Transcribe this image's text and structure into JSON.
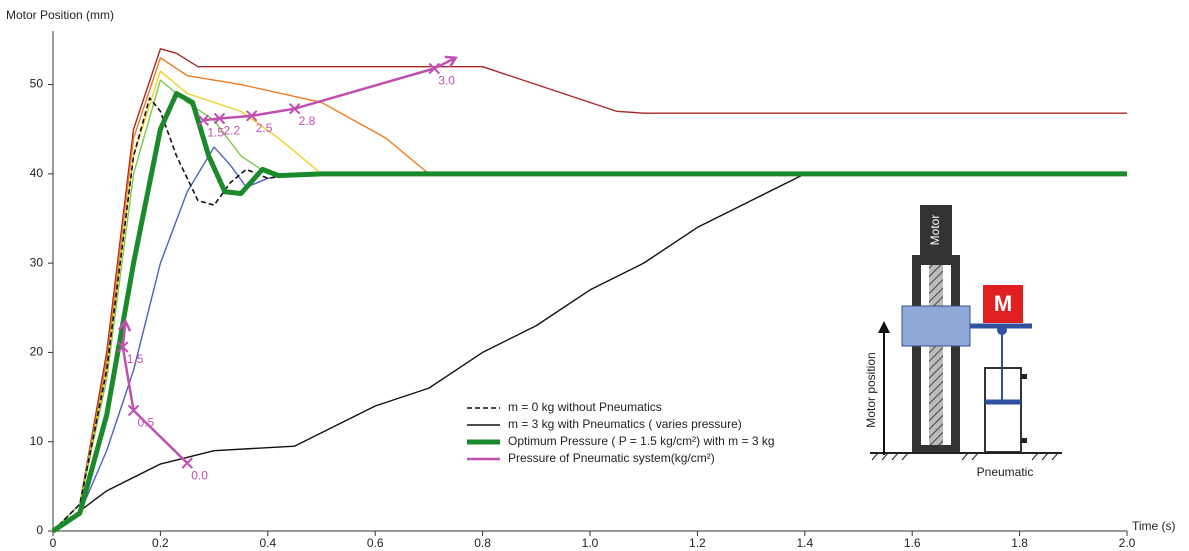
{
  "chart_data": {
    "type": "line",
    "y_title": "Motor Position (mm)",
    "x_title": "Time (s)",
    "xlim": [
      0,
      2.0
    ],
    "ylim": [
      0,
      56
    ],
    "xticks": [
      0,
      0.2,
      0.4,
      0.6,
      0.8,
      {
        "value": 1,
        "label": "1.0"
      },
      1.2,
      1.4,
      1.6,
      1.8,
      {
        "value": 2,
        "label": "2.0"
      }
    ],
    "yticks": [
      0,
      10,
      20,
      30,
      40,
      50
    ],
    "series": [
      {
        "color": "#a52a2a",
        "style": "solid",
        "x": [
          0,
          0.05,
          0.1,
          0.15,
          0.2,
          0.23,
          0.27,
          0.4,
          0.8,
          0.85,
          0.95,
          1.05,
          1.1,
          2.0
        ],
        "values": [
          0,
          3,
          20,
          45,
          54,
          53.5,
          52,
          52,
          52,
          51,
          49,
          47,
          46.8,
          46.8
        ]
      },
      {
        "color": "#f07a1e",
        "style": "solid",
        "x": [
          0,
          0.05,
          0.1,
          0.15,
          0.2,
          0.25,
          0.35,
          0.5,
          0.62,
          0.7,
          2.0
        ],
        "values": [
          0,
          3,
          19,
          44,
          53,
          51,
          50,
          48,
          44,
          40,
          40
        ]
      },
      {
        "color": "#f0d020",
        "style": "solid",
        "x": [
          0,
          0.05,
          0.1,
          0.15,
          0.2,
          0.25,
          0.35,
          0.42,
          0.5,
          2.0
        ],
        "values": [
          0,
          3,
          18,
          42,
          51.5,
          49,
          47,
          44,
          40,
          40
        ]
      },
      {
        "color": "#7cc850",
        "style": "solid",
        "x": [
          0,
          0.05,
          0.1,
          0.15,
          0.2,
          0.25,
          0.3,
          0.35,
          0.4,
          2.0
        ],
        "values": [
          0,
          3,
          17,
          40,
          50.5,
          48,
          46,
          42,
          40,
          40
        ]
      },
      {
        "color": "#5060c0",
        "style": "solid",
        "x": [
          0,
          0.05,
          0.1,
          0.15,
          0.2,
          0.25,
          0.3,
          0.33,
          0.36,
          0.4,
          0.45,
          2.0
        ],
        "values": [
          0,
          2,
          9,
          18,
          30,
          38,
          43,
          41,
          38.5,
          39.5,
          40,
          40
        ]
      },
      {
        "name": "m = 0 kg without Pneumatics",
        "color": "#111111",
        "style": "dashed",
        "x": [
          0,
          0.05,
          0.1,
          0.15,
          0.18,
          0.2,
          0.23,
          0.27,
          0.3,
          0.33,
          0.36,
          0.4,
          0.45,
          2.0
        ],
        "values": [
          0,
          3,
          18,
          42,
          48.5,
          47,
          42,
          37,
          36.5,
          39,
          40.5,
          39.5,
          40,
          40
        ]
      },
      {
        "name": "m = 3 kg with Pneumatics ( varies pressure)",
        "color": "#111111",
        "style": "solid",
        "x": [
          0,
          0.1,
          0.2,
          0.3,
          0.45,
          0.5,
          0.6,
          0.7,
          0.8,
          0.9,
          1.0,
          1.1,
          1.2,
          1.3,
          1.4,
          2.0
        ],
        "values": [
          0,
          4.5,
          7.5,
          9,
          9.5,
          11,
          14,
          16,
          20,
          23,
          27,
          30,
          34,
          37,
          40,
          40
        ]
      },
      {
        "name": "Optimum Pressure ( P = 1.5 kg/cm²) with m = 3 kg",
        "color": "#1a8a2a",
        "style": "thick",
        "x": [
          0,
          0.05,
          0.1,
          0.15,
          0.2,
          0.23,
          0.26,
          0.29,
          0.32,
          0.35,
          0.39,
          0.42,
          0.5,
          2.0
        ],
        "values": [
          0,
          2,
          13,
          30,
          45,
          49,
          48,
          42,
          38,
          37.8,
          40.5,
          39.8,
          40,
          40
        ]
      },
      {
        "name": "Pressure of Pneumatic system(kg/cm²)",
        "color": "#c050b0",
        "style": "arrow",
        "x": [
          0.25,
          0.15,
          0.13,
          0.135,
          null,
          0.28,
          0.31,
          0.37,
          0.45,
          0.71,
          0.75
        ],
        "values": [
          7.6,
          13.5,
          20.6,
          23.5,
          null,
          46,
          46.2,
          46.5,
          47.3,
          51.8,
          53
        ],
        "point_labels": [
          "0.0",
          "0.5",
          "1.5",
          null,
          null,
          "1.5",
          "2.2",
          "2.5",
          "2.8",
          "3.0",
          null
        ]
      }
    ],
    "inset": {
      "motor": "Motor",
      "mass": "M",
      "position": "Motor position",
      "pneumatic": "Pneumatic"
    }
  }
}
